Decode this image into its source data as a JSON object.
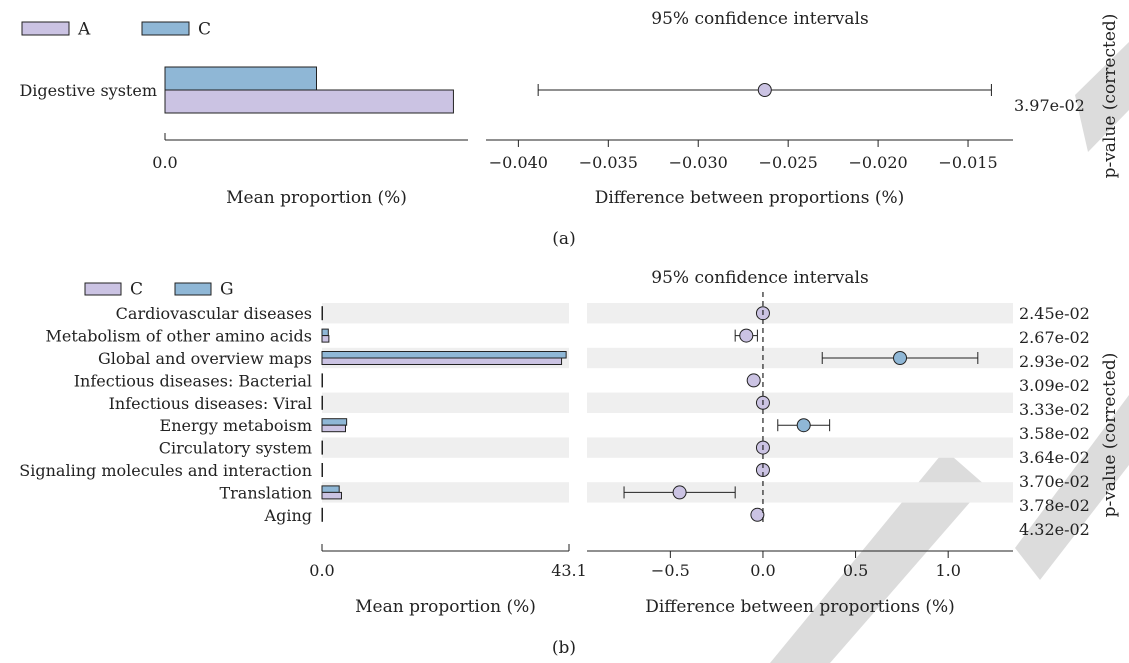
{
  "colors": {
    "purple": "#cbc3e3",
    "blue": "#8fb7d6",
    "stroke": "#222222",
    "stripe": "#efefef",
    "watermark": "#dcdcdc"
  },
  "chart_data": [
    {
      "panel_label": "(a)",
      "type": "bar",
      "legend": [
        "A",
        "C"
      ],
      "legend_colors": [
        "#cbc3e3",
        "#8fb7d6"
      ],
      "categories": [
        "Digestive system"
      ],
      "series": [
        {
          "name": "A",
          "values": [
            0.00099
          ]
        },
        {
          "name": "C",
          "values": [
            0.00052
          ]
        }
      ],
      "bar_xlim": [
        0,
        0.00104
      ],
      "bar_ticks": [
        "0.0"
      ],
      "bar_xlabel": "Mean proportion (%)",
      "ci_title": "95% confidence intervals",
      "ci_xlabel": "Difference between proportions (%)",
      "ci_xlim": [
        -0.0418,
        -0.0125
      ],
      "ci_ticks": [
        {
          "value": -0.04,
          "label": "−0.040"
        },
        {
          "value": -0.035,
          "label": "−0.035"
        },
        {
          "value": -0.03,
          "label": "−0.030"
        },
        {
          "value": -0.025,
          "label": "−0.025"
        },
        {
          "value": -0.02,
          "label": "−0.020"
        },
        {
          "value": -0.015,
          "label": "−0.015"
        }
      ],
      "differences": [
        {
          "mean": -0.0263,
          "low": -0.0389,
          "high": -0.0137,
          "color": "#cbc3e3"
        }
      ],
      "pvalues": [
        "3.97e-02"
      ],
      "pvalue_label": "p-value (corrected)",
      "zero_line": false
    },
    {
      "panel_label": "(b)",
      "type": "bar",
      "legend": [
        "C",
        "G"
      ],
      "legend_colors": [
        "#cbc3e3",
        "#8fb7d6"
      ],
      "categories": [
        "Cardiovascular diseases",
        "Metabolism of other amino acids",
        "Global and overview maps",
        "Infectious diseases: Bacterial",
        "Infectious diseases: Viral",
        "Energy metaboism",
        "Circulatory system",
        "Signaling molecules and interaction",
        "Translation",
        "Aging"
      ],
      "series": [
        {
          "name": "C",
          "values": [
            0.02,
            1.2,
            41.8,
            0.03,
            0.01,
            4.1,
            0.01,
            0.01,
            3.4,
            0.02
          ]
        },
        {
          "name": "G",
          "values": [
            0.02,
            1.1,
            42.6,
            0.03,
            0.01,
            4.3,
            0.01,
            0.01,
            3.0,
            0.02
          ]
        }
      ],
      "bar_xlim": [
        0,
        43.1
      ],
      "bar_ticks": [
        "0.0",
        "43.1"
      ],
      "bar_xlabel": "Mean proportion (%)",
      "ci_title": "95% confidence intervals",
      "ci_xlabel": "Difference between proportions (%)",
      "ci_xlim": [
        -0.95,
        1.35
      ],
      "ci_ticks": [
        {
          "value": -0.5,
          "label": "−0.5"
        },
        {
          "value": 0.0,
          "label": "0.0"
        },
        {
          "value": 0.5,
          "label": "0.5"
        },
        {
          "value": 1.0,
          "label": "1.0"
        }
      ],
      "differences": [
        {
          "mean": 0.0,
          "low": null,
          "high": null,
          "color": "#cbc3e3"
        },
        {
          "mean": -0.09,
          "low": -0.15,
          "high": -0.03,
          "color": "#cbc3e3"
        },
        {
          "mean": 0.74,
          "low": 0.32,
          "high": 1.16,
          "color": "#8fb7d6"
        },
        {
          "mean": -0.05,
          "low": null,
          "high": null,
          "color": "#cbc3e3"
        },
        {
          "mean": 0.0,
          "low": null,
          "high": null,
          "color": "#cbc3e3"
        },
        {
          "mean": 0.22,
          "low": 0.08,
          "high": 0.36,
          "color": "#8fb7d6"
        },
        {
          "mean": 0.0,
          "low": null,
          "high": null,
          "color": "#cbc3e3"
        },
        {
          "mean": 0.0,
          "low": null,
          "high": null,
          "color": "#cbc3e3"
        },
        {
          "mean": -0.45,
          "low": -0.75,
          "high": -0.15,
          "color": "#cbc3e3"
        },
        {
          "mean": -0.03,
          "low": null,
          "high": null,
          "color": "#cbc3e3"
        }
      ],
      "pvalues": [
        "2.45e-02",
        "2.67e-02",
        "2.93e-02",
        "3.09e-02",
        "3.33e-02",
        "3.58e-02",
        "3.64e-02",
        "3.70e-02",
        "3.78e-02",
        "4.32e-02"
      ],
      "pvalue_label": "p-value (corrected)",
      "zero_line": true
    }
  ]
}
